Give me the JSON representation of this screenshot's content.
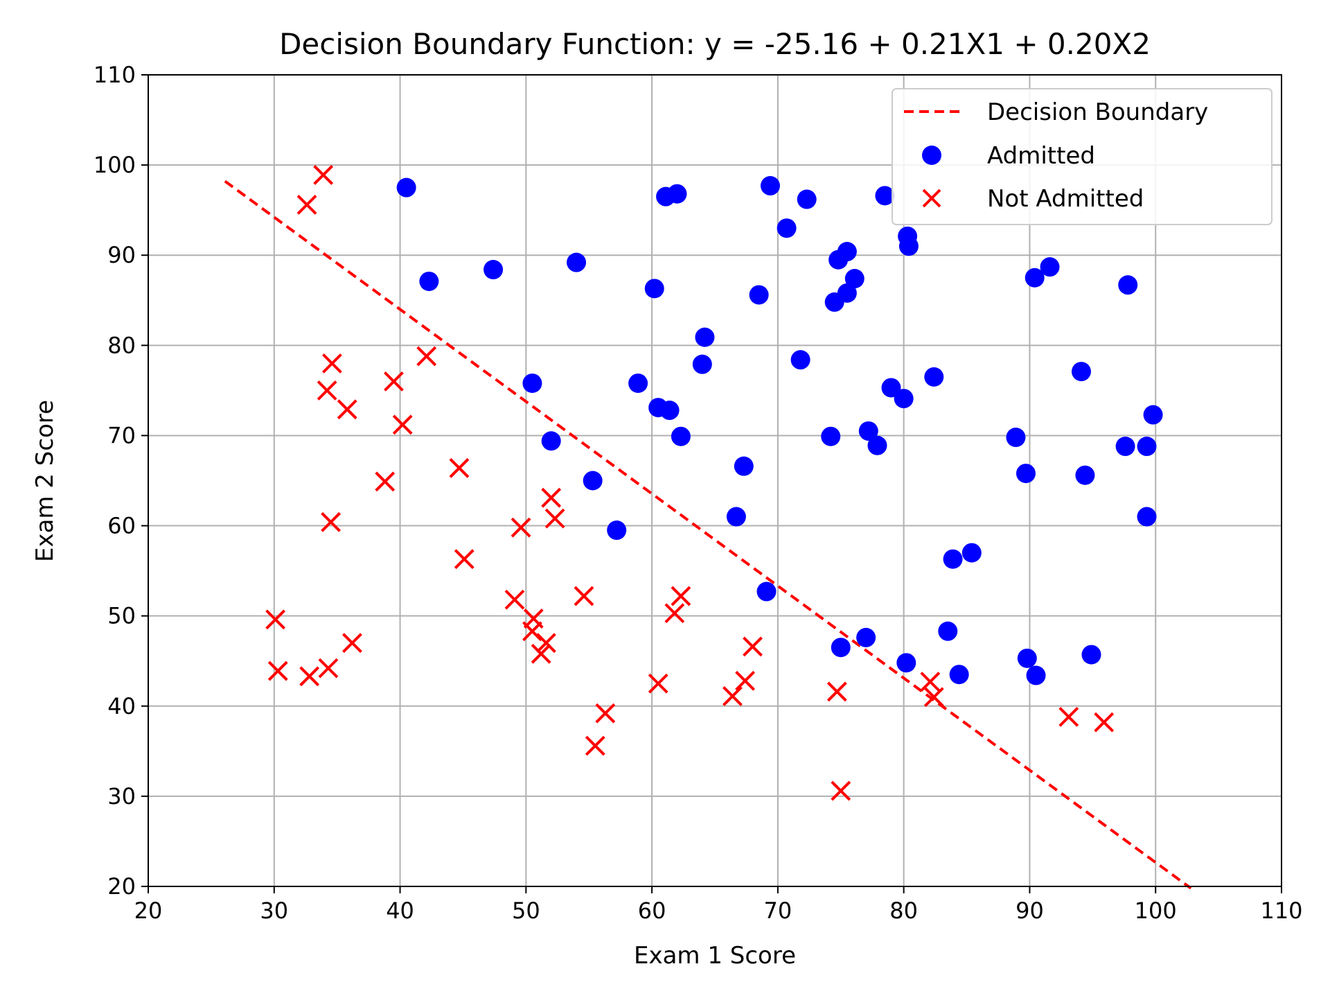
{
  "chart_data": {
    "type": "scatter",
    "title": "Decision Boundary Function: y = -25.16 + 0.21X1 + 0.20X2",
    "xlabel": "Exam 1 Score",
    "ylabel": "Exam 2 Score",
    "xlim": [
      20,
      110
    ],
    "ylim": [
      20,
      110
    ],
    "xticks": [
      20,
      30,
      40,
      50,
      60,
      70,
      80,
      90,
      100,
      110
    ],
    "yticks": [
      20,
      30,
      40,
      50,
      60,
      70,
      80,
      90,
      100,
      110
    ],
    "grid": true,
    "legend_position": "top-right",
    "colors": {
      "admitted": "#0000ff",
      "not_admitted": "#ff0000",
      "boundary": "#ff0000"
    },
    "boundary": {
      "name": "Decision Boundary",
      "style": "dashed",
      "points": [
        [
          26.1,
          98.2
        ],
        [
          102.8,
          19.8
        ]
      ]
    },
    "series": [
      {
        "name": "Admitted",
        "marker": "circle",
        "points": [
          [
            40.5,
            97.5
          ],
          [
            42.3,
            87.1
          ],
          [
            47.4,
            88.4
          ],
          [
            54.0,
            89.2
          ],
          [
            61.1,
            96.5
          ],
          [
            62.0,
            96.8
          ],
          [
            60.2,
            86.3
          ],
          [
            68.5,
            85.6
          ],
          [
            69.4,
            97.7
          ],
          [
            70.7,
            93.0
          ],
          [
            72.3,
            96.2
          ],
          [
            74.8,
            89.5
          ],
          [
            75.5,
            90.4
          ],
          [
            75.5,
            85.8
          ],
          [
            74.5,
            84.8
          ],
          [
            76.1,
            87.4
          ],
          [
            78.5,
            96.6
          ],
          [
            80.3,
            92.1
          ],
          [
            80.4,
            91.0
          ],
          [
            64.2,
            80.9
          ],
          [
            64.0,
            77.9
          ],
          [
            71.8,
            78.4
          ],
          [
            50.5,
            75.8
          ],
          [
            58.9,
            75.8
          ],
          [
            60.5,
            73.1
          ],
          [
            61.4,
            72.8
          ],
          [
            62.3,
            69.9
          ],
          [
            52.0,
            69.4
          ],
          [
            55.3,
            65.0
          ],
          [
            57.2,
            59.5
          ],
          [
            67.3,
            66.6
          ],
          [
            66.7,
            61.0
          ],
          [
            69.1,
            52.7
          ],
          [
            74.2,
            69.9
          ],
          [
            77.2,
            70.5
          ],
          [
            77.9,
            68.9
          ],
          [
            79.0,
            75.3
          ],
          [
            80.0,
            74.1
          ],
          [
            82.4,
            76.5
          ],
          [
            90.4,
            87.5
          ],
          [
            91.6,
            88.7
          ],
          [
            97.8,
            86.7
          ],
          [
            94.1,
            77.1
          ],
          [
            99.8,
            72.3
          ],
          [
            88.9,
            69.8
          ],
          [
            97.6,
            68.8
          ],
          [
            99.3,
            68.8
          ],
          [
            89.7,
            65.8
          ],
          [
            94.4,
            65.6
          ],
          [
            99.3,
            61.0
          ],
          [
            83.9,
            56.3
          ],
          [
            85.4,
            57.0
          ],
          [
            75.0,
            46.5
          ],
          [
            77.0,
            47.6
          ],
          [
            80.2,
            44.8
          ],
          [
            83.5,
            48.3
          ],
          [
            84.4,
            43.5
          ],
          [
            89.8,
            45.3
          ],
          [
            90.5,
            43.4
          ],
          [
            94.9,
            45.7
          ]
        ]
      },
      {
        "name": "Not Admitted",
        "marker": "x",
        "points": [
          [
            34.6,
            78.0
          ],
          [
            30.3,
            43.9
          ],
          [
            35.8,
            72.9
          ],
          [
            45.1,
            56.3
          ],
          [
            32.8,
            43.3
          ],
          [
            34.2,
            75.0
          ],
          [
            40.2,
            71.2
          ],
          [
            36.2,
            47.0
          ],
          [
            61.8,
            50.3
          ],
          [
            62.3,
            52.2
          ],
          [
            52.0,
            63.1
          ],
          [
            52.3,
            60.8
          ],
          [
            49.6,
            59.8
          ],
          [
            49.1,
            51.8
          ],
          [
            50.6,
            49.7
          ],
          [
            51.2,
            45.8
          ],
          [
            51.6,
            47.0
          ],
          [
            54.6,
            52.2
          ],
          [
            56.3,
            39.2
          ],
          [
            55.5,
            35.6
          ],
          [
            60.5,
            42.5
          ],
          [
            66.4,
            41.1
          ],
          [
            67.4,
            42.8
          ],
          [
            68.0,
            46.6
          ],
          [
            74.7,
            41.6
          ],
          [
            75.0,
            30.6
          ],
          [
            82.1,
            42.7
          ],
          [
            82.4,
            41.0
          ],
          [
            93.1,
            38.8
          ],
          [
            95.9,
            38.2
          ],
          [
            33.9,
            98.9
          ],
          [
            32.6,
            95.6
          ],
          [
            42.1,
            78.8
          ],
          [
            39.5,
            76.0
          ],
          [
            44.7,
            66.4
          ],
          [
            38.8,
            64.9
          ],
          [
            34.5,
            60.4
          ],
          [
            30.1,
            49.6
          ],
          [
            34.3,
            44.2
          ],
          [
            50.5,
            48.3
          ]
        ]
      }
    ]
  }
}
